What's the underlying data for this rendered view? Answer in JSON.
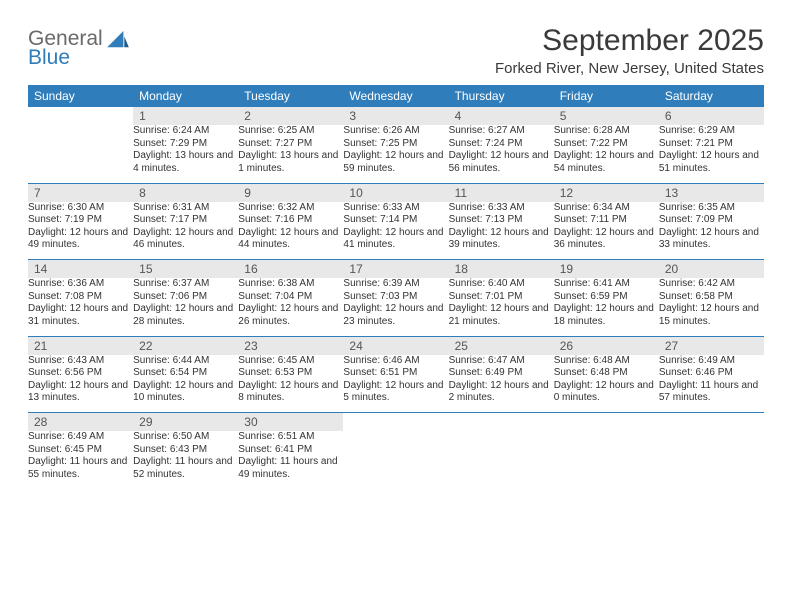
{
  "brand": {
    "general": "General",
    "blue": "Blue"
  },
  "title": "September 2025",
  "location": "Forked River, New Jersey, United States",
  "colors": {
    "header_bg": "#2f7dbb",
    "header_text": "#ffffff",
    "daynum_bg": "#e8e8e8",
    "border": "#2f7dbb",
    "body_text": "#333333",
    "logo_gray": "#6a6a6a",
    "logo_blue": "#2f7dbb"
  },
  "day_names": [
    "Sunday",
    "Monday",
    "Tuesday",
    "Wednesday",
    "Thursday",
    "Friday",
    "Saturday"
  ],
  "weeks": [
    [
      {
        "num": "",
        "sunrise": "",
        "sunset": "",
        "daylight": ""
      },
      {
        "num": "1",
        "sunrise": "Sunrise: 6:24 AM",
        "sunset": "Sunset: 7:29 PM",
        "daylight": "Daylight: 13 hours and 4 minutes."
      },
      {
        "num": "2",
        "sunrise": "Sunrise: 6:25 AM",
        "sunset": "Sunset: 7:27 PM",
        "daylight": "Daylight: 13 hours and 1 minutes."
      },
      {
        "num": "3",
        "sunrise": "Sunrise: 6:26 AM",
        "sunset": "Sunset: 7:25 PM",
        "daylight": "Daylight: 12 hours and 59 minutes."
      },
      {
        "num": "4",
        "sunrise": "Sunrise: 6:27 AM",
        "sunset": "Sunset: 7:24 PM",
        "daylight": "Daylight: 12 hours and 56 minutes."
      },
      {
        "num": "5",
        "sunrise": "Sunrise: 6:28 AM",
        "sunset": "Sunset: 7:22 PM",
        "daylight": "Daylight: 12 hours and 54 minutes."
      },
      {
        "num": "6",
        "sunrise": "Sunrise: 6:29 AM",
        "sunset": "Sunset: 7:21 PM",
        "daylight": "Daylight: 12 hours and 51 minutes."
      }
    ],
    [
      {
        "num": "7",
        "sunrise": "Sunrise: 6:30 AM",
        "sunset": "Sunset: 7:19 PM",
        "daylight": "Daylight: 12 hours and 49 minutes."
      },
      {
        "num": "8",
        "sunrise": "Sunrise: 6:31 AM",
        "sunset": "Sunset: 7:17 PM",
        "daylight": "Daylight: 12 hours and 46 minutes."
      },
      {
        "num": "9",
        "sunrise": "Sunrise: 6:32 AM",
        "sunset": "Sunset: 7:16 PM",
        "daylight": "Daylight: 12 hours and 44 minutes."
      },
      {
        "num": "10",
        "sunrise": "Sunrise: 6:33 AM",
        "sunset": "Sunset: 7:14 PM",
        "daylight": "Daylight: 12 hours and 41 minutes."
      },
      {
        "num": "11",
        "sunrise": "Sunrise: 6:33 AM",
        "sunset": "Sunset: 7:13 PM",
        "daylight": "Daylight: 12 hours and 39 minutes."
      },
      {
        "num": "12",
        "sunrise": "Sunrise: 6:34 AM",
        "sunset": "Sunset: 7:11 PM",
        "daylight": "Daylight: 12 hours and 36 minutes."
      },
      {
        "num": "13",
        "sunrise": "Sunrise: 6:35 AM",
        "sunset": "Sunset: 7:09 PM",
        "daylight": "Daylight: 12 hours and 33 minutes."
      }
    ],
    [
      {
        "num": "14",
        "sunrise": "Sunrise: 6:36 AM",
        "sunset": "Sunset: 7:08 PM",
        "daylight": "Daylight: 12 hours and 31 minutes."
      },
      {
        "num": "15",
        "sunrise": "Sunrise: 6:37 AM",
        "sunset": "Sunset: 7:06 PM",
        "daylight": "Daylight: 12 hours and 28 minutes."
      },
      {
        "num": "16",
        "sunrise": "Sunrise: 6:38 AM",
        "sunset": "Sunset: 7:04 PM",
        "daylight": "Daylight: 12 hours and 26 minutes."
      },
      {
        "num": "17",
        "sunrise": "Sunrise: 6:39 AM",
        "sunset": "Sunset: 7:03 PM",
        "daylight": "Daylight: 12 hours and 23 minutes."
      },
      {
        "num": "18",
        "sunrise": "Sunrise: 6:40 AM",
        "sunset": "Sunset: 7:01 PM",
        "daylight": "Daylight: 12 hours and 21 minutes."
      },
      {
        "num": "19",
        "sunrise": "Sunrise: 6:41 AM",
        "sunset": "Sunset: 6:59 PM",
        "daylight": "Daylight: 12 hours and 18 minutes."
      },
      {
        "num": "20",
        "sunrise": "Sunrise: 6:42 AM",
        "sunset": "Sunset: 6:58 PM",
        "daylight": "Daylight: 12 hours and 15 minutes."
      }
    ],
    [
      {
        "num": "21",
        "sunrise": "Sunrise: 6:43 AM",
        "sunset": "Sunset: 6:56 PM",
        "daylight": "Daylight: 12 hours and 13 minutes."
      },
      {
        "num": "22",
        "sunrise": "Sunrise: 6:44 AM",
        "sunset": "Sunset: 6:54 PM",
        "daylight": "Daylight: 12 hours and 10 minutes."
      },
      {
        "num": "23",
        "sunrise": "Sunrise: 6:45 AM",
        "sunset": "Sunset: 6:53 PM",
        "daylight": "Daylight: 12 hours and 8 minutes."
      },
      {
        "num": "24",
        "sunrise": "Sunrise: 6:46 AM",
        "sunset": "Sunset: 6:51 PM",
        "daylight": "Daylight: 12 hours and 5 minutes."
      },
      {
        "num": "25",
        "sunrise": "Sunrise: 6:47 AM",
        "sunset": "Sunset: 6:49 PM",
        "daylight": "Daylight: 12 hours and 2 minutes."
      },
      {
        "num": "26",
        "sunrise": "Sunrise: 6:48 AM",
        "sunset": "Sunset: 6:48 PM",
        "daylight": "Daylight: 12 hours and 0 minutes."
      },
      {
        "num": "27",
        "sunrise": "Sunrise: 6:49 AM",
        "sunset": "Sunset: 6:46 PM",
        "daylight": "Daylight: 11 hours and 57 minutes."
      }
    ],
    [
      {
        "num": "28",
        "sunrise": "Sunrise: 6:49 AM",
        "sunset": "Sunset: 6:45 PM",
        "daylight": "Daylight: 11 hours and 55 minutes."
      },
      {
        "num": "29",
        "sunrise": "Sunrise: 6:50 AM",
        "sunset": "Sunset: 6:43 PM",
        "daylight": "Daylight: 11 hours and 52 minutes."
      },
      {
        "num": "30",
        "sunrise": "Sunrise: 6:51 AM",
        "sunset": "Sunset: 6:41 PM",
        "daylight": "Daylight: 11 hours and 49 minutes."
      },
      {
        "num": "",
        "sunrise": "",
        "sunset": "",
        "daylight": ""
      },
      {
        "num": "",
        "sunrise": "",
        "sunset": "",
        "daylight": ""
      },
      {
        "num": "",
        "sunrise": "",
        "sunset": "",
        "daylight": ""
      },
      {
        "num": "",
        "sunrise": "",
        "sunset": "",
        "daylight": ""
      }
    ]
  ]
}
